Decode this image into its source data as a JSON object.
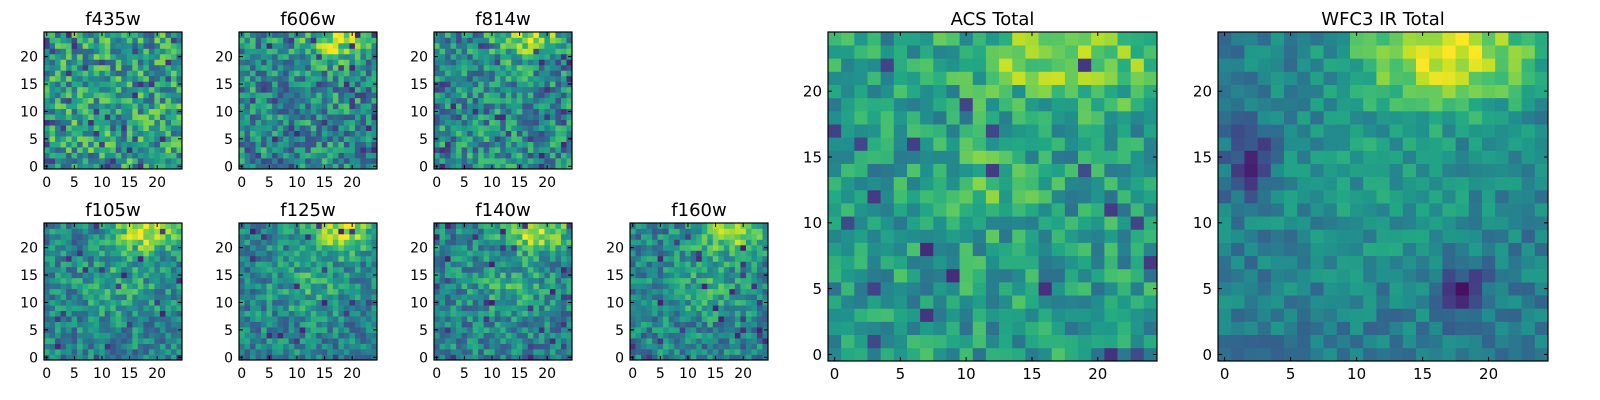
{
  "chart_data": [
    {
      "type": "heatmap",
      "title": "f435w",
      "xlim": [
        0,
        24
      ],
      "ylim": [
        0,
        24
      ],
      "xticks": [
        0,
        5,
        10,
        15,
        20
      ],
      "yticks": [
        0,
        5,
        10,
        15,
        20
      ],
      "grid_size": 25,
      "colormap": "viridis",
      "field": "f435w",
      "seed": 11
    },
    {
      "type": "heatmap",
      "title": "f606w",
      "xlim": [
        0,
        24
      ],
      "ylim": [
        0,
        24
      ],
      "xticks": [
        0,
        5,
        10,
        15,
        20
      ],
      "yticks": [
        0,
        5,
        10,
        15,
        20
      ],
      "grid_size": 25,
      "colormap": "viridis",
      "field": "f606w",
      "seed": 23
    },
    {
      "type": "heatmap",
      "title": "f814w",
      "xlim": [
        0,
        24
      ],
      "ylim": [
        0,
        24
      ],
      "xticks": [
        0,
        5,
        10,
        15,
        20
      ],
      "yticks": [
        0,
        5,
        10,
        15,
        20
      ],
      "grid_size": 25,
      "colormap": "viridis",
      "field": "f814w",
      "seed": 37
    },
    {
      "type": "heatmap",
      "title": "f105w",
      "xlim": [
        0,
        24
      ],
      "ylim": [
        0,
        24
      ],
      "xticks": [
        0,
        5,
        10,
        15,
        20
      ],
      "yticks": [
        0,
        5,
        10,
        15,
        20
      ],
      "grid_size": 25,
      "colormap": "viridis",
      "field": "f105w",
      "seed": 41
    },
    {
      "type": "heatmap",
      "title": "f125w",
      "xlim": [
        0,
        24
      ],
      "ylim": [
        0,
        24
      ],
      "xticks": [
        0,
        5,
        10,
        15,
        20
      ],
      "yticks": [
        0,
        5,
        10,
        15,
        20
      ],
      "grid_size": 25,
      "colormap": "viridis",
      "field": "f125w",
      "seed": 53
    },
    {
      "type": "heatmap",
      "title": "f140w",
      "xlim": [
        0,
        24
      ],
      "ylim": [
        0,
        24
      ],
      "xticks": [
        0,
        5,
        10,
        15,
        20
      ],
      "yticks": [
        0,
        5,
        10,
        15,
        20
      ],
      "grid_size": 25,
      "colormap": "viridis",
      "field": "f140w",
      "seed": 67
    },
    {
      "type": "heatmap",
      "title": "f160w",
      "xlim": [
        0,
        24
      ],
      "ylim": [
        0,
        24
      ],
      "xticks": [
        0,
        5,
        10,
        15,
        20
      ],
      "yticks": [
        0,
        5,
        10,
        15,
        20
      ],
      "grid_size": 25,
      "colormap": "viridis",
      "field": "f160w",
      "seed": 79
    },
    {
      "type": "heatmap",
      "title": "ACS Total",
      "xlim": [
        0,
        24
      ],
      "ylim": [
        0,
        24
      ],
      "xticks": [
        0,
        5,
        10,
        15,
        20
      ],
      "yticks": [
        0,
        5,
        10,
        15,
        20
      ],
      "grid_size": 25,
      "colormap": "viridis",
      "field": "acs_total",
      "seed": 83
    },
    {
      "type": "heatmap",
      "title": "WFC3 IR Total",
      "xlim": [
        0,
        24
      ],
      "ylim": [
        0,
        24
      ],
      "xticks": [
        0,
        5,
        10,
        15,
        20
      ],
      "yticks": [
        0,
        5,
        10,
        15,
        20
      ],
      "grid_size": 25,
      "colormap": "viridis",
      "field": "wfc3_ir_total",
      "seed": 97
    }
  ]
}
